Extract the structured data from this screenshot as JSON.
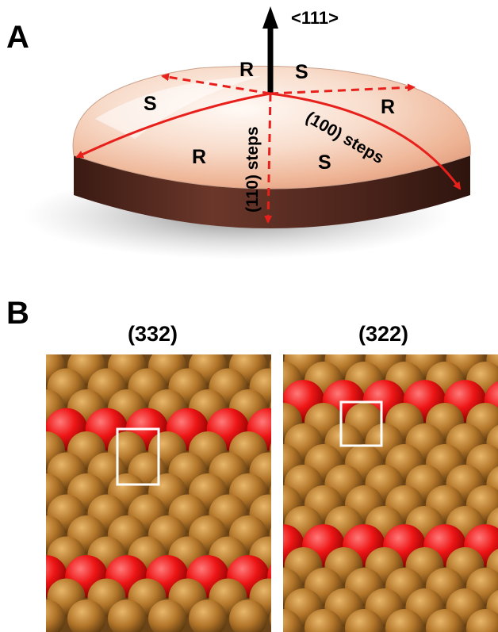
{
  "panel_a": {
    "letter": "A",
    "direction_label": "<111>",
    "regions": [
      "R",
      "S",
      "S",
      "R",
      "R",
      "S"
    ],
    "step_labels": {
      "steps_110": "(110) steps",
      "steps_100": "(100) steps"
    },
    "colors": {
      "arrow": "#e8201c",
      "rim": "#4a2219",
      "crystal_top": "#f4c9b2"
    }
  },
  "panel_b": {
    "letter": "B",
    "surfaces": [
      {
        "title": "(332)"
      },
      {
        "title": "(322)"
      }
    ],
    "colors": {
      "terrace_atom": "#b8782a",
      "step_atom": "#ee1111",
      "unit_cell": "#ffffff"
    }
  }
}
